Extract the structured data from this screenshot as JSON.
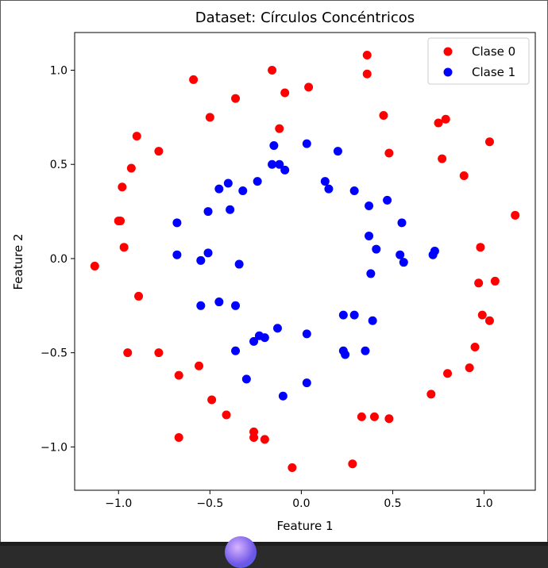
{
  "chart_data": {
    "type": "scatter",
    "title": "Dataset: Círculos Concéntricos",
    "xlabel": "Feature 1",
    "ylabel": "Feature 2",
    "xlim": [
      -1.24,
      1.28
    ],
    "ylim": [
      -1.23,
      1.2
    ],
    "xticks": [
      {
        "value": -1.0,
        "label": "−1.0"
      },
      {
        "value": -0.5,
        "label": "−0.5"
      },
      {
        "value": 0.0,
        "label": "0.0"
      },
      {
        "value": 0.5,
        "label": "0.5"
      },
      {
        "value": 1.0,
        "label": "1.0"
      }
    ],
    "yticks": [
      {
        "value": 1.0,
        "label": "1.0"
      },
      {
        "value": 0.5,
        "label": "0.5"
      },
      {
        "value": 0.0,
        "label": "0.0"
      },
      {
        "value": -0.5,
        "label": "−0.5"
      },
      {
        "value": -1.0,
        "label": "−1.0"
      }
    ],
    "grid": false,
    "legend": "top-right",
    "series": [
      {
        "name": "Clase 0",
        "color": "#ff0000",
        "points": [
          [
            -0.16,
            1.0
          ],
          [
            0.36,
            1.08
          ],
          [
            0.36,
            0.98
          ],
          [
            -0.59,
            0.95
          ],
          [
            0.04,
            0.91
          ],
          [
            -0.09,
            0.88
          ],
          [
            -0.36,
            0.85
          ],
          [
            -0.5,
            0.75
          ],
          [
            0.45,
            0.76
          ],
          [
            0.79,
            0.74
          ],
          [
            0.75,
            0.72
          ],
          [
            -0.12,
            0.69
          ],
          [
            -0.9,
            0.65
          ],
          [
            1.03,
            0.62
          ],
          [
            -0.78,
            0.57
          ],
          [
            0.48,
            0.56
          ],
          [
            0.77,
            0.53
          ],
          [
            -0.93,
            0.48
          ],
          [
            0.89,
            0.44
          ],
          [
            -0.98,
            0.38
          ],
          [
            -0.99,
            0.2
          ],
          [
            -1.0,
            0.2
          ],
          [
            1.17,
            0.23
          ],
          [
            -0.97,
            0.06
          ],
          [
            0.98,
            0.06
          ],
          [
            -1.13,
            -0.04
          ],
          [
            1.06,
            -0.12
          ],
          [
            0.97,
            -0.13
          ],
          [
            -0.89,
            -0.2
          ],
          [
            0.99,
            -0.3
          ],
          [
            1.03,
            -0.33
          ],
          [
            0.95,
            -0.47
          ],
          [
            -0.95,
            -0.5
          ],
          [
            -0.78,
            -0.5
          ],
          [
            -0.56,
            -0.57
          ],
          [
            0.92,
            -0.58
          ],
          [
            0.8,
            -0.61
          ],
          [
            -0.67,
            -0.62
          ],
          [
            0.71,
            -0.72
          ],
          [
            -0.49,
            -0.75
          ],
          [
            -0.41,
            -0.83
          ],
          [
            0.33,
            -0.84
          ],
          [
            0.4,
            -0.84
          ],
          [
            0.48,
            -0.85
          ],
          [
            -0.26,
            -0.92
          ],
          [
            -0.26,
            -0.95
          ],
          [
            -0.2,
            -0.96
          ],
          [
            -0.67,
            -0.95
          ],
          [
            0.28,
            -1.09
          ],
          [
            -0.05,
            -1.11
          ]
        ]
      },
      {
        "name": "Clase 1",
        "color": "#0000ff",
        "points": [
          [
            0.03,
            0.61
          ],
          [
            -0.15,
            0.6
          ],
          [
            0.2,
            0.57
          ],
          [
            -0.16,
            0.5
          ],
          [
            -0.12,
            0.5
          ],
          [
            -0.09,
            0.47
          ],
          [
            0.13,
            0.41
          ],
          [
            -0.24,
            0.41
          ],
          [
            -0.4,
            0.4
          ],
          [
            0.15,
            0.37
          ],
          [
            -0.45,
            0.37
          ],
          [
            -0.32,
            0.36
          ],
          [
            0.29,
            0.36
          ],
          [
            0.47,
            0.31
          ],
          [
            0.37,
            0.28
          ],
          [
            -0.39,
            0.26
          ],
          [
            -0.51,
            0.25
          ],
          [
            -0.68,
            0.19
          ],
          [
            0.55,
            0.19
          ],
          [
            0.37,
            0.12
          ],
          [
            0.41,
            0.05
          ],
          [
            0.73,
            0.04
          ],
          [
            -0.51,
            0.03
          ],
          [
            0.54,
            0.02
          ],
          [
            0.72,
            0.02
          ],
          [
            -0.68,
            0.02
          ],
          [
            -0.55,
            -0.01
          ],
          [
            0.56,
            -0.02
          ],
          [
            -0.34,
            -0.03
          ],
          [
            0.38,
            -0.08
          ],
          [
            -0.45,
            -0.23
          ],
          [
            -0.55,
            -0.25
          ],
          [
            -0.36,
            -0.25
          ],
          [
            0.23,
            -0.3
          ],
          [
            0.29,
            -0.3
          ],
          [
            0.39,
            -0.33
          ],
          [
            -0.13,
            -0.37
          ],
          [
            0.03,
            -0.4
          ],
          [
            -0.23,
            -0.41
          ],
          [
            -0.2,
            -0.42
          ],
          [
            -0.26,
            -0.44
          ],
          [
            -0.36,
            -0.49
          ],
          [
            0.35,
            -0.49
          ],
          [
            0.23,
            -0.49
          ],
          [
            0.24,
            -0.51
          ],
          [
            -0.3,
            -0.64
          ],
          [
            0.03,
            -0.66
          ],
          [
            -0.1,
            -0.73
          ]
        ]
      }
    ]
  }
}
